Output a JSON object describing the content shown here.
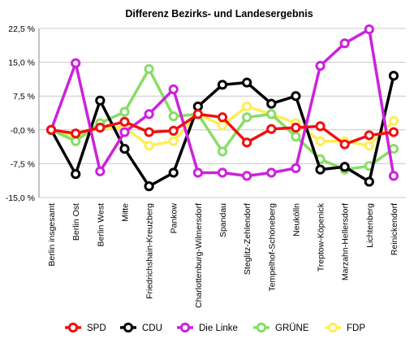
{
  "chart_data": {
    "type": "line",
    "title": "Differenz Bezirks- und Landesergebnis",
    "xlabel": "",
    "ylabel": "",
    "ylim": [
      -15,
      22.5
    ],
    "yticks": [
      22.5,
      15,
      7.5,
      0,
      -7.5,
      -15
    ],
    "ytick_labels": [
      "22,5 %",
      "15,0 %",
      "7,5 %",
      "-0,0 %",
      "-7,5 %",
      "-15,0 %"
    ],
    "grid": true,
    "legend_position": "bottom",
    "categories": [
      "Berlin insgesamt",
      "Berlin Ost",
      "Berlin West",
      "Mitte",
      "Friedrichshain-Kreuzberg",
      "Pankow",
      "Charlottenburg-Wilmersdorf",
      "Spandau",
      "Steglitz-Zehlendorf",
      "Tempelhof-Schöneberg",
      "Neukölln",
      "Treptow-Köpenick",
      "Marzahn-Hellersdorf",
      "Lichtenberg",
      "Reinickendorf"
    ],
    "series": [
      {
        "name": "FDP",
        "color": "#ffee55",
        "values": [
          0,
          -1.5,
          0.5,
          0.5,
          -3.5,
          -2.5,
          3.5,
          1,
          5.2,
          3.5,
          1.5,
          -2.5,
          -2.5,
          -3.5,
          2
        ]
      },
      {
        "name": "GRÜNE",
        "color": "#88dd66",
        "values": [
          0,
          -2.5,
          1.5,
          4,
          13.5,
          3,
          3.5,
          -4.8,
          2.8,
          3.5,
          -1.5,
          -6.5,
          -8.8,
          -8,
          -4.2
        ]
      },
      {
        "name": "CDU",
        "color": "#000000",
        "values": [
          0,
          -9.8,
          6.5,
          -4.2,
          -12.5,
          -9.5,
          5.2,
          10,
          10.5,
          5.8,
          7.5,
          -8.8,
          -8.2,
          -11.5,
          12
        ]
      },
      {
        "name": "Die Linke",
        "color": "#cc22dd",
        "values": [
          0,
          14.8,
          -9.2,
          -0.5,
          3.5,
          9,
          -9.5,
          -9.5,
          -10.2,
          -9.5,
          -8.5,
          14.2,
          19.2,
          22.3,
          -10.2
        ]
      },
      {
        "name": "SPD",
        "color": "#ee1111",
        "values": [
          0,
          -0.8,
          0.5,
          1.8,
          -0.5,
          -0.2,
          3.5,
          2.8,
          -2.8,
          0.2,
          0.5,
          0.8,
          -3.2,
          -1.2,
          -0.5
        ]
      }
    ],
    "legend": [
      {
        "name": "SPD",
        "color": "#ee1111"
      },
      {
        "name": "CDU",
        "color": "#000000"
      },
      {
        "name": "Die Linke",
        "color": "#cc22dd"
      },
      {
        "name": "GRÜNE",
        "color": "#88dd66"
      },
      {
        "name": "FDP",
        "color": "#ffee55"
      }
    ]
  }
}
